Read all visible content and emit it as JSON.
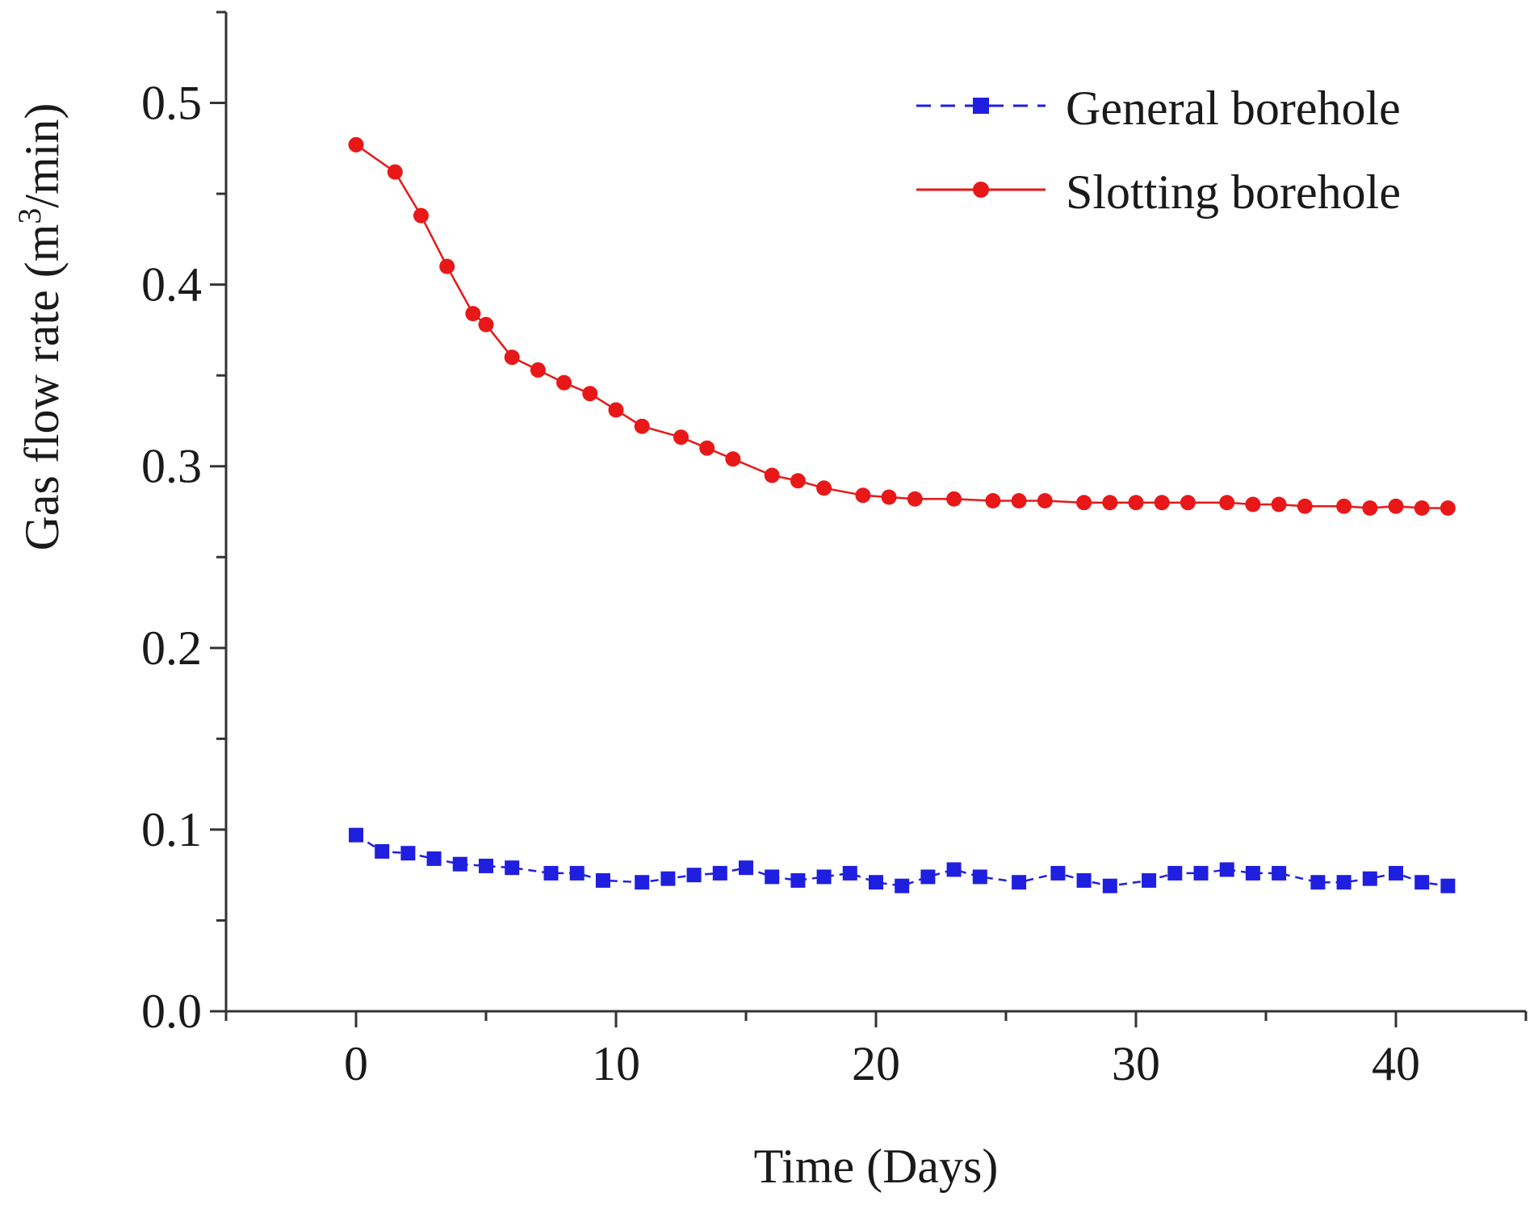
{
  "chart_data": {
    "type": "line",
    "title": "",
    "xlabel": "Time (Days)",
    "ylabel_main": "Gas flow rate (m",
    "ylabel_sup": "3",
    "ylabel_end": "/min)",
    "xlim": [
      -5,
      45
    ],
    "ylim": [
      0,
      0.55
    ],
    "xticks": [
      0,
      10,
      20,
      30,
      40
    ],
    "xtick_labels": [
      "0",
      "10",
      "20",
      "30",
      "40"
    ],
    "yticks": [
      0.0,
      0.1,
      0.2,
      0.3,
      0.4,
      0.5
    ],
    "ytick_labels": [
      "0.0",
      "0.1",
      "0.2",
      "0.3",
      "0.4",
      "0.5"
    ],
    "legend_position": "top-right",
    "series": [
      {
        "name": "General borehole",
        "color": "#1f1fe0",
        "line_style": "dashed",
        "marker": "square",
        "x": [
          0,
          1,
          2,
          3,
          4,
          5,
          6,
          7.5,
          8.5,
          9.5,
          11,
          12,
          13,
          14,
          15,
          16,
          17,
          18,
          19,
          20,
          21,
          22,
          23,
          24,
          25.5,
          27,
          28,
          29,
          30.5,
          31.5,
          32.5,
          33.5,
          34.5,
          35.5,
          37,
          38,
          39,
          40,
          41,
          42
        ],
        "y": [
          0.097,
          0.088,
          0.087,
          0.084,
          0.081,
          0.08,
          0.079,
          0.076,
          0.076,
          0.072,
          0.071,
          0.073,
          0.075,
          0.076,
          0.079,
          0.074,
          0.072,
          0.074,
          0.076,
          0.071,
          0.069,
          0.074,
          0.078,
          0.074,
          0.071,
          0.076,
          0.072,
          0.069,
          0.072,
          0.076,
          0.076,
          0.078,
          0.076,
          0.076,
          0.071,
          0.071,
          0.073,
          0.076,
          0.071,
          0.069
        ]
      },
      {
        "name": "Slotting borehole",
        "color": "#e81818",
        "line_style": "solid",
        "marker": "circle",
        "x": [
          0,
          1.5,
          2.5,
          3.5,
          4.5,
          5,
          6,
          7,
          8,
          9,
          10,
          11,
          12.5,
          13.5,
          14.5,
          16,
          17,
          18,
          19.5,
          20.5,
          21.5,
          23,
          24.5,
          25.5,
          26.5,
          28,
          29,
          30,
          31,
          32,
          33.5,
          34.5,
          35.5,
          36.5,
          38,
          39,
          40,
          41,
          42
        ],
        "y": [
          0.477,
          0.462,
          0.438,
          0.41,
          0.384,
          0.378,
          0.36,
          0.353,
          0.346,
          0.34,
          0.331,
          0.322,
          0.316,
          0.31,
          0.304,
          0.295,
          0.292,
          0.288,
          0.284,
          0.283,
          0.282,
          0.282,
          0.281,
          0.281,
          0.281,
          0.28,
          0.28,
          0.28,
          0.28,
          0.28,
          0.28,
          0.279,
          0.279,
          0.278,
          0.278,
          0.277,
          0.278,
          0.277,
          0.277
        ]
      }
    ]
  }
}
